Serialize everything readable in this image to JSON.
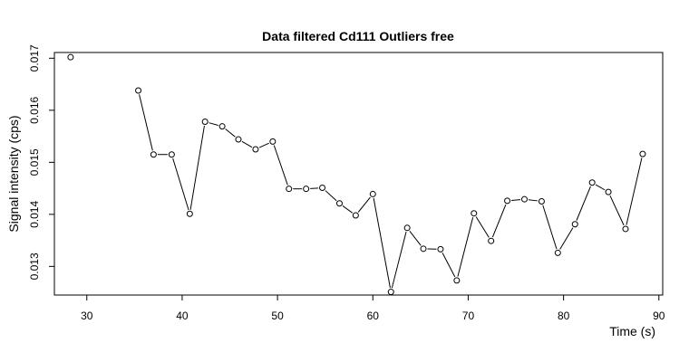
{
  "chart_data": {
    "type": "line",
    "title": "Data filtered Cd111 Outliers free",
    "xlabel": "Time (s)",
    "ylabel": "Signal intensity (cps)",
    "xlim": [
      26.6,
      90.4
    ],
    "ylim": [
      0.01245,
      0.01711
    ],
    "xticks": [
      30,
      40,
      50,
      60,
      70,
      80,
      90
    ],
    "yticks": [
      0.013,
      0.014,
      0.015,
      0.016,
      0.017
    ],
    "ytick_labels": [
      "0.013",
      "0.014",
      "0.015",
      "0.016",
      "0.017"
    ],
    "grid": false,
    "x": [
      28.3,
      35.4,
      37.0,
      38.9,
      40.8,
      42.4,
      44.2,
      45.9,
      47.7,
      49.5,
      51.2,
      53.0,
      54.7,
      56.5,
      58.2,
      60.0,
      61.9,
      63.6,
      65.3,
      67.1,
      68.8,
      70.6,
      72.4,
      74.1,
      75.9,
      77.7,
      79.4,
      81.2,
      83.0,
      84.7,
      86.5,
      88.3
    ],
    "y": [
      0.01702,
      0.01638,
      0.01515,
      0.01515,
      0.01401,
      0.01578,
      0.01569,
      0.01544,
      0.01525,
      0.0154,
      0.01449,
      0.01449,
      0.01451,
      0.01421,
      0.01398,
      0.01439,
      0.01251,
      0.01374,
      0.01334,
      0.01333,
      0.01273,
      0.01402,
      0.01349,
      0.01426,
      0.01429,
      0.01425,
      0.01326,
      0.01381,
      0.01461,
      0.01443,
      0.01372,
      0.01516
    ],
    "missing_segment_after_index": 0
  }
}
